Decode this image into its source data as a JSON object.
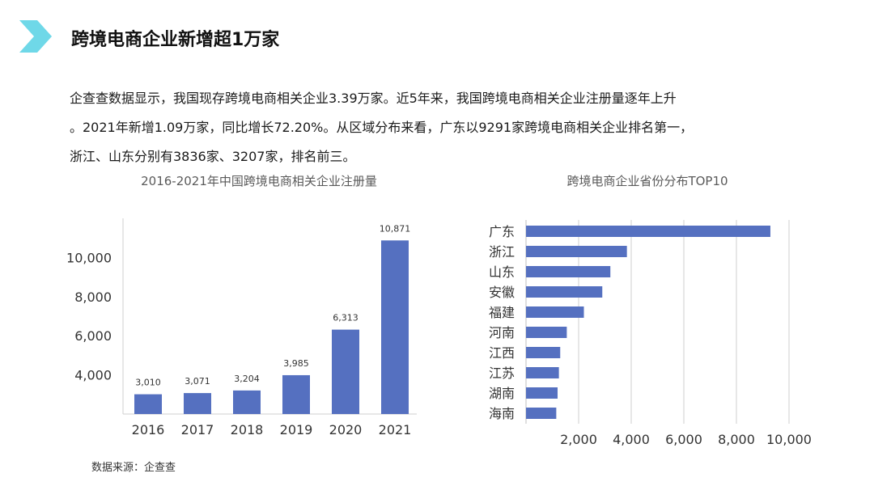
{
  "page": {
    "title": "跨境电商企业新增超1万家",
    "body_lines": [
      "企查查数据显示，我国现存跨境电商相关企业3.39万家。近5年来，我国跨境电商相关企业注册量逐年上升",
      "。2021年新增1.09万家，同比增长72.20%。从区域分布来看，广东以9291家跨境电商相关企业排名第一，",
      "浙江、山东分别有3836家、3207家，排名前三。"
    ],
    "source": "数据来源：企查查",
    "accent_color": "#5b7fc7",
    "icon_color": "#6fd8e8",
    "icon": "chevron-right-icon"
  },
  "chart_data": [
    {
      "type": "bar",
      "title": "2016-2021年中国跨境电商相关企业注册量",
      "categories": [
        "2016",
        "2017",
        "2018",
        "2019",
        "2020",
        "2021"
      ],
      "values": [
        3010,
        3071,
        3204,
        3985,
        6313,
        10871
      ],
      "data_labels": [
        "3,010",
        "3,071",
        "3,204",
        "3,985",
        "6,313",
        "10,871"
      ],
      "ylim": [
        2000,
        12000
      ],
      "yticks": [
        4000,
        6000,
        8000,
        10000
      ],
      "ytick_labels": [
        "4,000",
        "6,000",
        "8,000",
        "10,000"
      ],
      "grid": false,
      "color": "#5570c0"
    },
    {
      "type": "bar",
      "orientation": "horizontal",
      "title": "跨境电商企业省份分布TOP10",
      "categories": [
        "广东",
        "浙江",
        "山东",
        "安徽",
        "福建",
        "河南",
        "江西",
        "江苏",
        "湖南",
        "海南"
      ],
      "values": [
        9291,
        3836,
        3207,
        2900,
        2200,
        1550,
        1300,
        1250,
        1200,
        1150
      ],
      "xlim": [
        0,
        10000
      ],
      "xticks": [
        2000,
        4000,
        6000,
        8000,
        10000
      ],
      "xtick_labels": [
        "2,000",
        "4,000",
        "6,000",
        "8,000",
        "10,000"
      ],
      "grid": true,
      "color": "#5570c0"
    }
  ]
}
